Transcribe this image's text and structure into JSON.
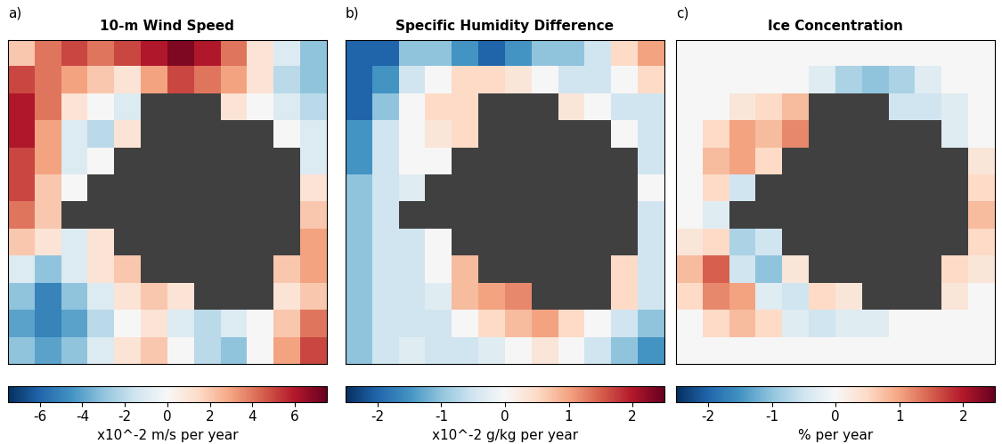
{
  "chart_data": [
    {
      "type": "heatmap",
      "label": "a)",
      "title": "10-m Wind Speed",
      "tick_labels": false,
      "cells": [
        [
          2,
          4,
          5,
          4,
          5,
          6,
          7,
          6,
          4,
          1,
          -1,
          -3
        ],
        [
          5,
          4,
          3,
          2,
          1,
          3,
          5,
          4,
          3,
          1,
          -2,
          -3
        ],
        [
          6,
          4,
          1,
          0,
          -1,
          null,
          null,
          null,
          1,
          0,
          -1,
          -2
        ],
        [
          6,
          3,
          -1,
          -2,
          1,
          null,
          null,
          null,
          null,
          null,
          0,
          -1
        ],
        [
          5,
          3,
          -1,
          0,
          null,
          null,
          null,
          null,
          null,
          null,
          null,
          -1
        ],
        [
          5,
          2,
          0,
          null,
          null,
          null,
          null,
          null,
          null,
          null,
          null,
          1
        ],
        [
          4,
          2,
          null,
          null,
          null,
          null,
          null,
          null,
          null,
          null,
          null,
          2
        ],
        [
          2,
          1,
          -1,
          1,
          null,
          null,
          null,
          null,
          null,
          null,
          null,
          3
        ],
        [
          -1,
          -3,
          -1,
          1,
          2,
          null,
          null,
          null,
          null,
          null,
          2,
          3
        ],
        [
          -3,
          -5,
          -3,
          -1,
          1,
          2,
          1,
          null,
          null,
          null,
          1,
          2
        ],
        [
          -4,
          -5,
          -4,
          -2,
          0,
          1,
          -1,
          -2,
          -1,
          0,
          2,
          4
        ],
        [
          -3,
          -4,
          -3,
          -1,
          1,
          2,
          0,
          -2,
          -3,
          0,
          3,
          5
        ]
      ],
      "colorbar_range": [
        -7.5,
        7.5
      ],
      "colorbar_ticks": [
        -6,
        -4,
        -2,
        0,
        2,
        4,
        6
      ],
      "colorbar_label": "x10^-2 m/s per year"
    },
    {
      "type": "heatmap",
      "label": "b)",
      "title": "Specific Humidity Difference",
      "tick_labels": false,
      "cells": [
        [
          -2,
          -2,
          -1,
          -1,
          -1.5,
          -2,
          -1.5,
          -1,
          -1,
          -0.5,
          0.5,
          1
        ],
        [
          -2,
          -1.5,
          -0.5,
          0,
          0.5,
          0.5,
          0.3,
          0,
          -0.5,
          -0.5,
          0,
          0.5
        ],
        [
          -2,
          -1,
          0,
          0.5,
          0.5,
          null,
          null,
          null,
          0.3,
          0,
          -0.5,
          -0.5
        ],
        [
          -1.5,
          -0.5,
          0,
          0.3,
          0.5,
          null,
          null,
          null,
          null,
          null,
          0,
          -0.5
        ],
        [
          -1.5,
          -0.5,
          0,
          0,
          null,
          null,
          null,
          null,
          null,
          null,
          null,
          -0.5
        ],
        [
          -1,
          -0.5,
          -0.3,
          null,
          null,
          null,
          null,
          null,
          null,
          null,
          null,
          0
        ],
        [
          -1,
          -0.5,
          null,
          null,
          null,
          null,
          null,
          null,
          null,
          null,
          null,
          -0.5
        ],
        [
          -1,
          -0.5,
          -0.5,
          0,
          null,
          null,
          null,
          null,
          null,
          null,
          null,
          -0.5
        ],
        [
          -1,
          -0.5,
          -0.5,
          0,
          0.8,
          null,
          null,
          null,
          null,
          null,
          0.5,
          -0.5
        ],
        [
          -1,
          -0.5,
          -0.5,
          -0.3,
          0.8,
          1,
          1.2,
          null,
          null,
          null,
          0.5,
          -0.5
        ],
        [
          -1,
          -0.5,
          -0.5,
          -0.5,
          0,
          0.5,
          0.8,
          1,
          0.5,
          0,
          -0.5,
          -1
        ],
        [
          -1,
          -0.5,
          -0.3,
          -0.5,
          -0.5,
          -0.3,
          0,
          0.3,
          0,
          -0.5,
          -1,
          -1.5
        ]
      ],
      "colorbar_range": [
        -2.5,
        2.5
      ],
      "colorbar_ticks": [
        -2,
        -1,
        0,
        1,
        2
      ],
      "colorbar_label": "x10^-2 g/kg per year"
    },
    {
      "type": "heatmap",
      "label": "c)",
      "title": "Ice Concentration",
      "tick_labels": false,
      "cells": [
        [
          0,
          0,
          0,
          0,
          0,
          0,
          0,
          0,
          0,
          0,
          0,
          0
        ],
        [
          0,
          0,
          0,
          0,
          0,
          -0.3,
          -0.8,
          -1,
          -0.8,
          -0.3,
          0,
          0
        ],
        [
          0,
          0,
          0.3,
          0.5,
          0.8,
          null,
          null,
          null,
          -0.5,
          -0.5,
          -0.3,
          0
        ],
        [
          0,
          0.5,
          1,
          0.8,
          1.2,
          null,
          null,
          null,
          null,
          null,
          -0.3,
          0
        ],
        [
          0,
          0.8,
          1,
          0.5,
          null,
          null,
          null,
          null,
          null,
          null,
          null,
          0.3
        ],
        [
          0,
          0.5,
          -0.5,
          null,
          null,
          null,
          null,
          null,
          null,
          null,
          null,
          0.5
        ],
        [
          0,
          -0.3,
          null,
          null,
          null,
          null,
          null,
          null,
          null,
          null,
          null,
          0.8
        ],
        [
          0.3,
          0.5,
          -0.8,
          -0.5,
          null,
          null,
          null,
          null,
          null,
          null,
          null,
          0.5
        ],
        [
          0.8,
          1.5,
          -0.5,
          -1,
          0.3,
          null,
          null,
          null,
          null,
          null,
          0.5,
          0.3
        ],
        [
          0.5,
          1.2,
          1,
          -0.3,
          -0.5,
          0.5,
          0.3,
          null,
          null,
          null,
          0.3,
          0
        ],
        [
          0,
          0.5,
          0.8,
          0.5,
          -0.3,
          -0.5,
          -0.3,
          -0.3,
          0,
          0,
          0,
          0
        ],
        [
          0,
          0,
          0,
          0,
          0,
          0,
          0,
          0,
          0,
          0,
          0,
          0
        ]
      ],
      "colorbar_range": [
        -2.5,
        2.5
      ],
      "colorbar_ticks": [
        -2,
        -1,
        0,
        1,
        2
      ],
      "colorbar_label": "% per year"
    }
  ]
}
